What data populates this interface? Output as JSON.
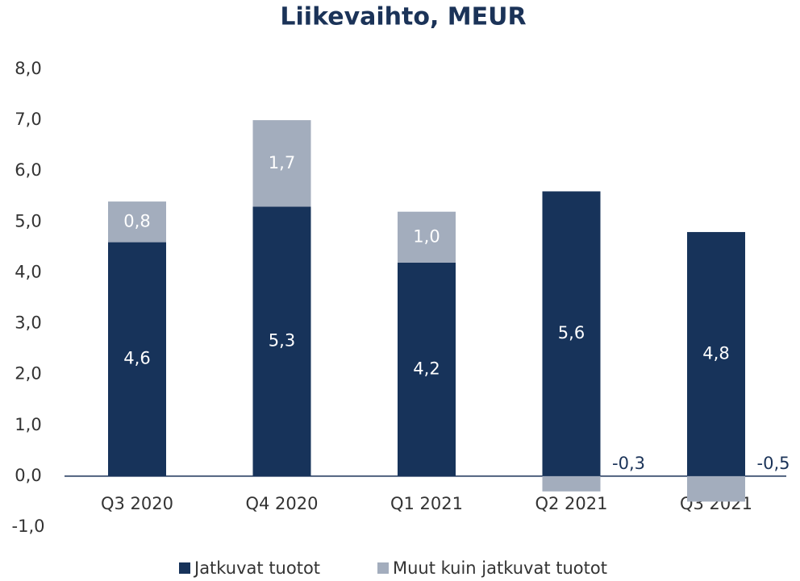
{
  "chart_data": {
    "type": "stacked_bar",
    "title": "Liikevaihto, MEUR",
    "categories": [
      "Q3 2020",
      "Q4 2020",
      "Q1 2021",
      "Q2 2021",
      "Q3 2021"
    ],
    "series": [
      {
        "name": "Jatkuvat tuotot",
        "color": "#17335a",
        "values": [
          4.6,
          5.3,
          4.2,
          5.6,
          4.8
        ],
        "value_labels": [
          "4,6",
          "5,3",
          "4,2",
          "5,6",
          "4,8"
        ]
      },
      {
        "name": "Muut kuin jatkuvat tuotot",
        "color": "#a3adbd",
        "values": [
          0.8,
          1.7,
          1.0,
          -0.3,
          -0.5
        ],
        "value_labels": [
          "0,8",
          "1,7",
          "1,0",
          "-0,3",
          "-0,5"
        ]
      }
    ],
    "ylim": [
      -1,
      8
    ],
    "yticks": [
      {
        "value": -1,
        "label": "-1,0"
      },
      {
        "value": 0,
        "label": "0,0"
      },
      {
        "value": 1,
        "label": "1,0"
      },
      {
        "value": 2,
        "label": "2,0"
      },
      {
        "value": 3,
        "label": "3,0"
      },
      {
        "value": 4,
        "label": "4,0"
      },
      {
        "value": 5,
        "label": "5,0"
      },
      {
        "value": 6,
        "label": "6,0"
      },
      {
        "value": 7,
        "label": "7,0"
      },
      {
        "value": 8,
        "label": "8,0"
      }
    ],
    "legend": "bottom"
  }
}
